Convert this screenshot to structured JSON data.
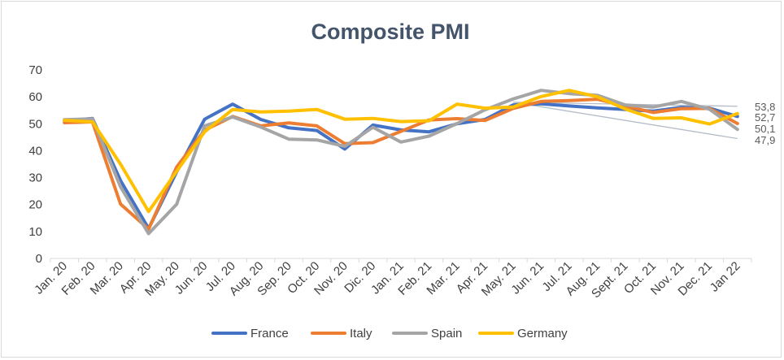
{
  "chart_data": {
    "type": "line",
    "title": "Composite PMI",
    "xlabel": "",
    "ylabel": "",
    "ylim": [
      0,
      70
    ],
    "yticks": [
      0,
      10,
      20,
      30,
      40,
      50,
      60,
      70
    ],
    "grid": false,
    "legend": "bottom",
    "categories": [
      "Jan. 20",
      "Feb. 20",
      "Mar. 20",
      "Apr. 20",
      "May. 20",
      "Jun. 20",
      "Jul. 20",
      "Aug. 20",
      "Sep. 20",
      "Oct. 20",
      "Nov. 20",
      "Dic. 20",
      "Jan. 21",
      "Feb. 21",
      "Mar. 21",
      "Apr. 21",
      "May. 21",
      "Jun. 21",
      "Jul. 21",
      "Aug. 21",
      "Sept. 21",
      "Oct. 21",
      "Nov. 21",
      "Dec. 21",
      "Jan 22"
    ],
    "series": [
      {
        "name": "France",
        "color": "#4472c4",
        "values": [
          51.1,
          52.0,
          28.9,
          11.1,
          32.1,
          51.7,
          57.3,
          51.6,
          48.5,
          47.5,
          40.6,
          49.5,
          47.7,
          47.0,
          50.0,
          51.6,
          57.0,
          57.4,
          56.6,
          55.9,
          55.3,
          54.7,
          56.1,
          55.8,
          52.7
        ]
      },
      {
        "name": "Italy",
        "color": "#ed7d31",
        "values": [
          50.4,
          50.7,
          20.2,
          10.9,
          33.9,
          47.6,
          52.7,
          49.2,
          50.3,
          49.2,
          42.6,
          43.0,
          47.2,
          51.4,
          51.9,
          51.2,
          55.7,
          58.3,
          58.6,
          59.1,
          56.6,
          54.2,
          55.6,
          55.7,
          50.1
        ]
      },
      {
        "name": "Spain",
        "color": "#a5a5a5",
        "values": [
          51.5,
          51.8,
          26.6,
          9.2,
          20.1,
          49.2,
          52.5,
          48.8,
          44.3,
          44.0,
          41.6,
          48.7,
          43.2,
          45.4,
          50.1,
          55.2,
          59.2,
          62.4,
          61.2,
          60.6,
          57.0,
          56.2,
          58.3,
          55.4,
          47.9
        ]
      },
      {
        "name": "Germany",
        "color": "#ffc000",
        "values": [
          51.3,
          50.7,
          35.0,
          17.4,
          32.3,
          47.0,
          55.3,
          54.4,
          54.7,
          55.3,
          51.7,
          52.0,
          50.8,
          51.1,
          57.3,
          55.8,
          56.2,
          60.1,
          62.4,
          60.0,
          55.5,
          52.0,
          52.2,
          49.9,
          53.8
        ]
      }
    ],
    "end_labels": [
      "53,8",
      "52,7",
      "50,1",
      "47,9"
    ],
    "trendlines": [
      {
        "from": "May. 21",
        "to": "Jan 22",
        "start": 58.0,
        "end": 56.5
      },
      {
        "from": "May. 21",
        "to": "Jan 22",
        "start": 58.0,
        "end": 44.5
      }
    ]
  }
}
